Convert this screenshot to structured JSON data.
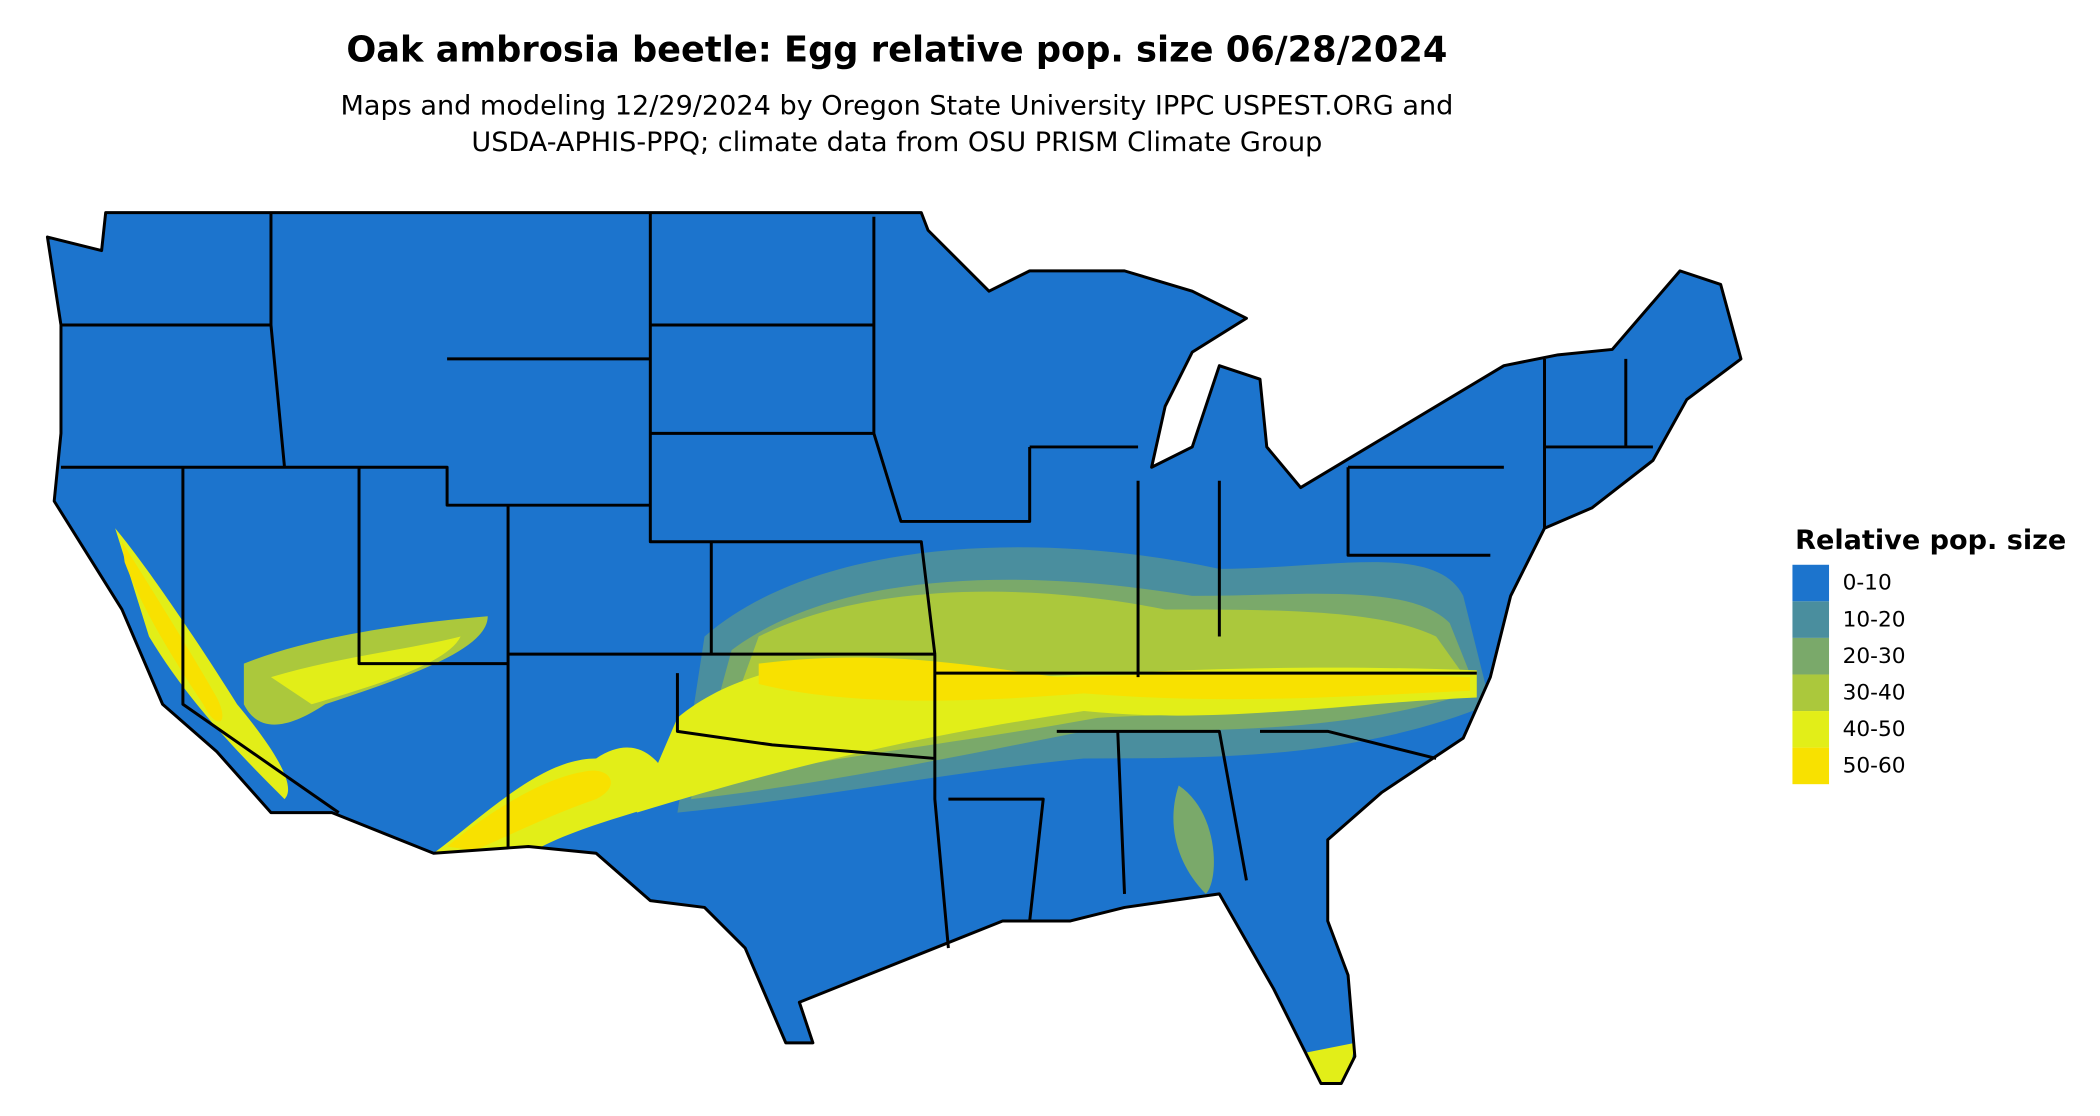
{
  "header": {
    "title": "Oak ambrosia beetle: Egg relative pop. size 06/28/2024",
    "subtitle": [
      "Maps and modeling 12/29/2024 by Oregon State University IPPC USPEST.ORG and",
      "USDA-APHIS-PPQ; climate data from OSU PRISM Climate Group"
    ]
  },
  "legend": {
    "title": "Relative pop. size",
    "items": [
      {
        "label": "0-10",
        "color": "#1c74cd"
      },
      {
        "label": "10-20",
        "color": "#4a8e9e"
      },
      {
        "label": "20-30",
        "color": "#7aa96a"
      },
      {
        "label": "30-40",
        "color": "#abc83c"
      },
      {
        "label": "40-50",
        "color": "#e2ee18"
      },
      {
        "label": "50-60",
        "color": "#f8e100"
      }
    ]
  }
}
